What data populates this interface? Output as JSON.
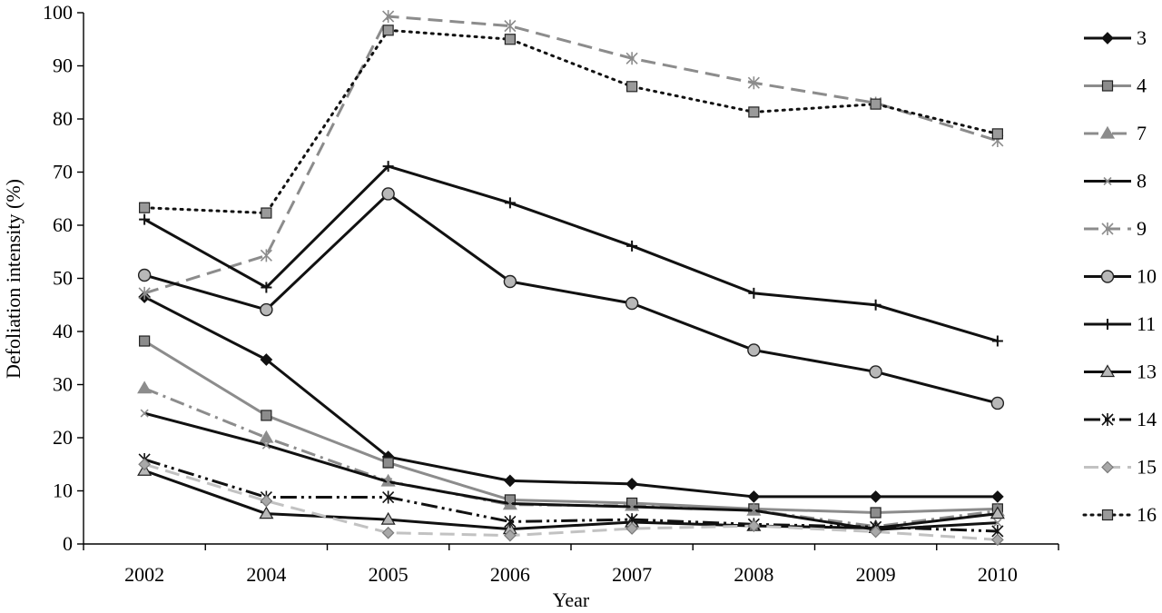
{
  "chart_data": {
    "type": "line",
    "title": "",
    "xlabel": "Year",
    "ylabel": "Defoliation intensity (%)",
    "categories": [
      "2002",
      "2004",
      "2005",
      "2006",
      "2007",
      "2008",
      "2009",
      "2010"
    ],
    "ylim": [
      0,
      100
    ],
    "yticks": [
      0,
      10,
      20,
      30,
      40,
      50,
      60,
      70,
      80,
      90,
      100
    ],
    "grid": false,
    "legend": "right",
    "series": [
      {
        "name": "3",
        "color": "#111111",
        "dash": "solid",
        "width": 3,
        "marker": "diamond",
        "markerFill": "#111111",
        "values": [
          46.5,
          34.7,
          16.4,
          11.9,
          11.3,
          8.9,
          8.9,
          8.9
        ]
      },
      {
        "name": "4",
        "color": "#8c8c8c",
        "dash": "solid",
        "width": 3,
        "marker": "square",
        "markerFill": "#8c8c8c",
        "values": [
          38.2,
          24.2,
          15.3,
          8.3,
          7.7,
          6.6,
          5.9,
          6.6
        ]
      },
      {
        "name": "7",
        "color": "#8c8c8c",
        "dash": "dashdot",
        "width": 3,
        "marker": "triangle",
        "markerFill": "#8c8c8c",
        "values": [
          29.3,
          20.0,
          11.8,
          7.4,
          7.2,
          6.3,
          3.3,
          6.2
        ]
      },
      {
        "name": "8",
        "color": "#111111",
        "dash": "solid",
        "width": 3,
        "marker": "x",
        "markerFill": "none",
        "values": [
          24.6,
          18.6,
          11.7,
          7.6,
          7.0,
          6.3,
          2.7,
          4.0
        ]
      },
      {
        "name": "9",
        "color": "#8c8c8c",
        "dash": "dash",
        "width": 3,
        "marker": "asterisk",
        "markerFill": "none",
        "values": [
          47.2,
          54.3,
          99.3,
          97.5,
          91.4,
          86.8,
          83.0,
          75.9
        ]
      },
      {
        "name": "10",
        "color": "#111111",
        "dash": "solid",
        "width": 3,
        "marker": "circle",
        "markerFill": "#b8b8b8",
        "values": [
          50.6,
          44.1,
          65.9,
          49.4,
          45.3,
          36.5,
          32.4,
          26.5
        ]
      },
      {
        "name": "11",
        "color": "#111111",
        "dash": "solid",
        "width": 3,
        "marker": "plus",
        "markerFill": "none",
        "values": [
          61.1,
          48.3,
          71.1,
          64.2,
          56.1,
          47.2,
          45.0,
          38.2
        ]
      },
      {
        "name": "13",
        "color": "#111111",
        "dash": "solid",
        "width": 3,
        "marker": "triangle",
        "markerFill": "#b8b8b8",
        "values": [
          13.8,
          5.7,
          4.6,
          2.8,
          4.1,
          3.4,
          3.0,
          5.7
        ]
      },
      {
        "name": "14",
        "color": "#111111",
        "dash": "dashdotdot",
        "width": 3,
        "marker": "asterisk",
        "markerFill": "none",
        "values": [
          15.9,
          8.8,
          8.8,
          4.2,
          4.6,
          3.7,
          3.2,
          2.4
        ]
      },
      {
        "name": "15",
        "color": "#c2c2c2",
        "dash": "dash",
        "width": 3,
        "marker": "diamond",
        "markerFill": "#a8a8a8",
        "values": [
          15.0,
          8.1,
          2.1,
          1.6,
          2.9,
          3.4,
          2.3,
          0.8
        ]
      },
      {
        "name": "16",
        "color": "#111111",
        "dash": "dot",
        "width": 3,
        "marker": "square",
        "markerFill": "#9a9a9a",
        "values": [
          63.3,
          62.3,
          96.7,
          95.0,
          86.1,
          81.3,
          82.8,
          77.2
        ]
      }
    ]
  }
}
